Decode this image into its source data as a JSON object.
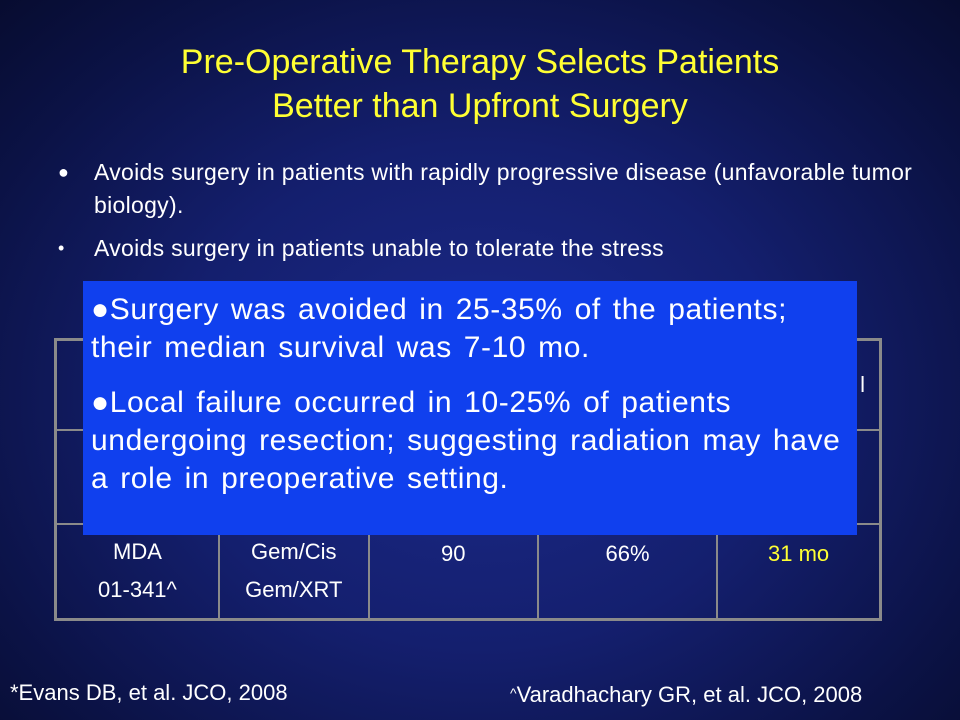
{
  "title": {
    "line1": "Pre-Operative Therapy Selects Patients",
    "line2": "Better than Upfront Surgery"
  },
  "bullets": [
    {
      "symbol": "●",
      "text": "Avoids surgery in patients with rapidly progressive disease (unfavorable tumor biology)."
    },
    {
      "symbol": "•",
      "text": "Avoids surgery in patients unable to tolerate the stress"
    }
  ],
  "table": {
    "partial_header_fragment": "l",
    "rows": [
      {
        "institution": "",
        "regimen": "",
        "n": "",
        "resected": "",
        "survival": ""
      },
      {
        "institution": "",
        "regimen": "",
        "n": "",
        "resected": "",
        "survival": ""
      },
      {
        "institution": "MDA",
        "trial": "01-341^",
        "regimen_line1": "Gem/Cis",
        "regimen_line2": "Gem/XRT",
        "n": "90",
        "resected": "66%",
        "survival": "31 mo"
      }
    ]
  },
  "callout": {
    "point1": "●Surgery was avoided in 25-35% of the patients; their median survival was 7-10 mo.",
    "point2": "●Local failure occurred in 10-25% of patients undergoing resection; suggesting radiation may have a role in preoperative setting."
  },
  "references": {
    "left": "*Evans DB, et al.  JCO, 2008",
    "right_caret": "^",
    "right": "Varadhachary GR, et al.  JCO, 2008"
  },
  "colors": {
    "title": "#ffff33",
    "highlight": "#ffff33",
    "callout_background": "#1040ee",
    "table_border": "#8a8a8a"
  }
}
